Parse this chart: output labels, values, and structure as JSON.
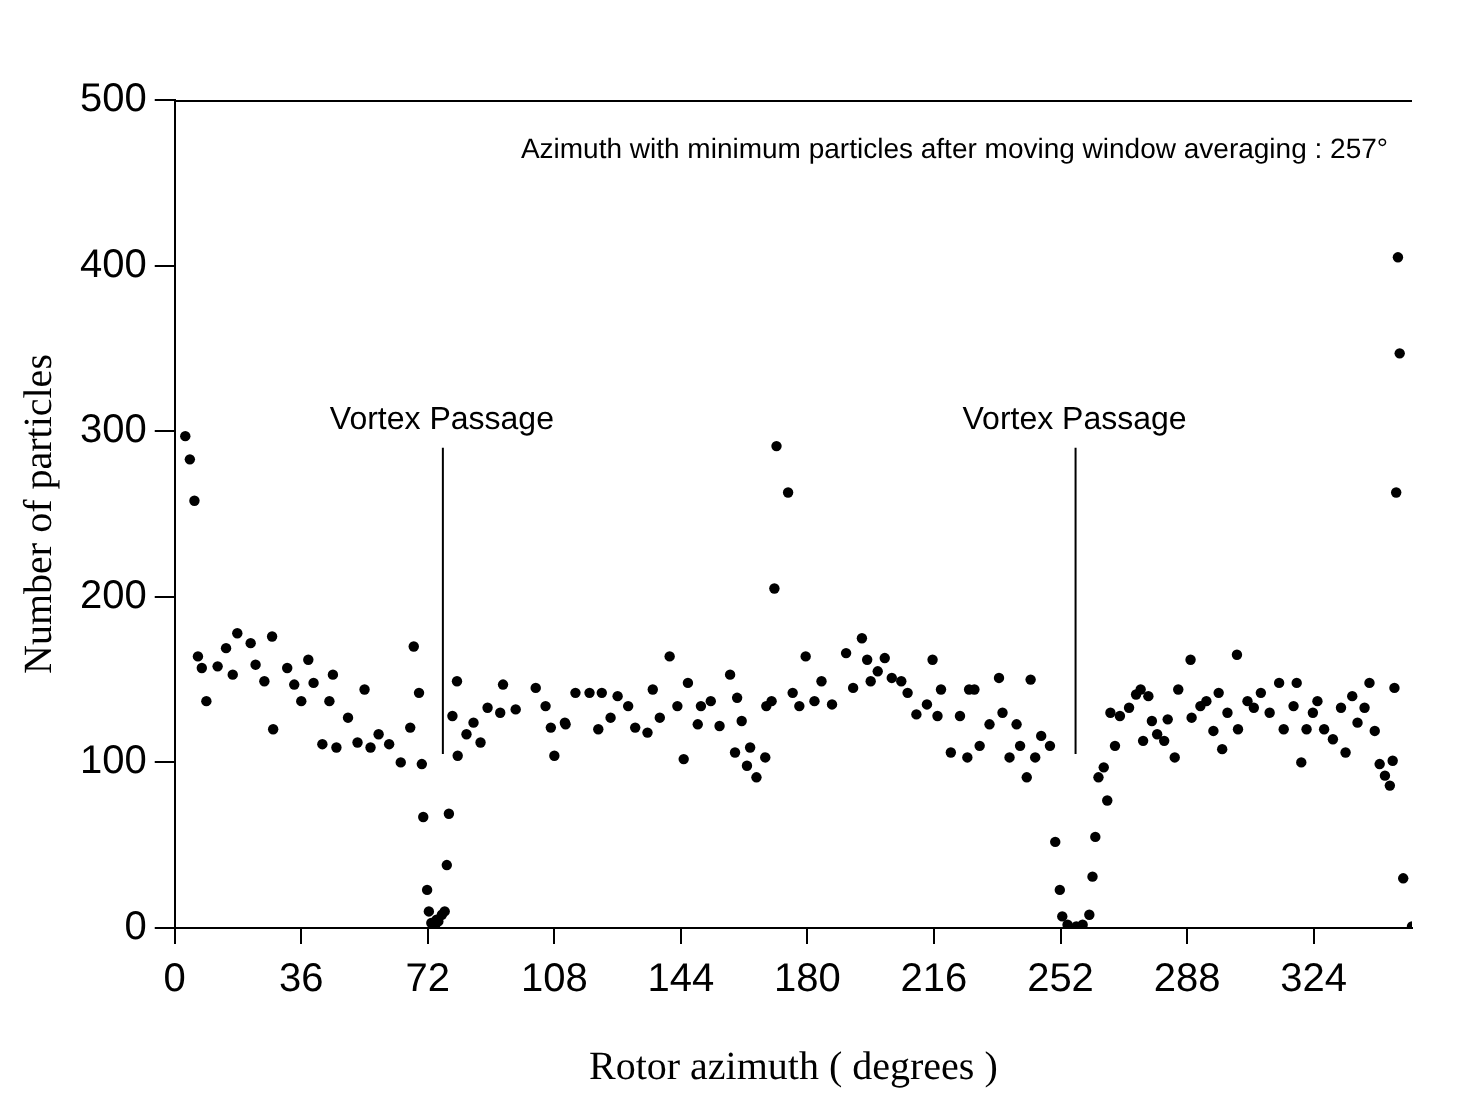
{
  "chart_data": {
    "type": "scatter",
    "xlabel": "Rotor azimuth ( degrees )",
    "ylabel": "Number of particles",
    "annotations": [
      "Azimuth with minimum particles after moving window averaging : 257°"
    ],
    "ref_lines": [
      {
        "axis": "x",
        "value": 76,
        "label": "Vortex Passage"
      },
      {
        "axis": "x",
        "value": 256,
        "label": "Vortex Passage"
      }
    ],
    "x": [
      3,
      4.3,
      5.6,
      6.6,
      7.7,
      9,
      12.2,
      14.6,
      16.5,
      17.8,
      21.6,
      23,
      25.5,
      27.7,
      28,
      32,
      34,
      36,
      38,
      39.5,
      42,
      44,
      45,
      46,
      49.3,
      52,
      54,
      55.7,
      58,
      61,
      64.3,
      67,
      68,
      69.5,
      70.3,
      70.7,
      71.8,
      72.3,
      73,
      74,
      74.5,
      75,
      76,
      76.8,
      77.4,
      78,
      79,
      80.3,
      80.5,
      83,
      85,
      87,
      89,
      92.6,
      93.4,
      97,
      102.7,
      105.5,
      107,
      108,
      111,
      111.2,
      114,
      118,
      120.5,
      121.5,
      124,
      126,
      129,
      131,
      134.5,
      136,
      138,
      140.8,
      143,
      144.8,
      146,
      148.8,
      149.7,
      152.5,
      155,
      158,
      159.4,
      160,
      161.3,
      162.8,
      163.7,
      165.5,
      168,
      168.3,
      169.8,
      170.6,
      171.2,
      174.5,
      175.8,
      177.7,
      179.5,
      182,
      184,
      187,
      191,
      193,
      195.5,
      197,
      198,
      200,
      202,
      204,
      206.7,
      208.5,
      211,
      214,
      215.6,
      217,
      218,
      220.8,
      223.4,
      225.5,
      226,
      227.5,
      229,
      231.8,
      234.5,
      235.5,
      237.5,
      239.5,
      240.5,
      242.4,
      243.5,
      244.8,
      246.5,
      249,
      250.5,
      251.8,
      252.5,
      254,
      256.5,
      258.3,
      260.2,
      261.1,
      261.9,
      262.8,
      264.3,
      265.3,
      266.2,
      267.5,
      268.9,
      271.5,
      273.5,
      274.8,
      275.5,
      277,
      278,
      279.5,
      281.5,
      282.5,
      284.5,
      285.5,
      289.3,
      289,
      291.8,
      293.5,
      295.5,
      297,
      298,
      299.5,
      302.2,
      302.5,
      305.2,
      307,
      309,
      311.5,
      314.2,
      315.5,
      318.3,
      319.2,
      320.5,
      322,
      323.8,
      325.1,
      327,
      329.5,
      331.8,
      333.1,
      335,
      336.5,
      338.5,
      339.9,
      341.4,
      342.8,
      344.3,
      345.7,
      346.5,
      347,
      347.5,
      348,
      348.5,
      349.5,
      352
    ],
    "values": [
      297,
      283,
      258,
      164,
      157,
      137,
      158,
      169,
      153,
      178,
      172,
      159,
      149,
      176,
      120,
      157,
      147,
      137,
      162,
      148,
      111,
      137,
      153,
      109,
      127,
      112,
      144,
      109,
      117,
      111,
      100,
      121,
      170,
      142,
      99,
      67,
      23,
      10,
      3,
      1,
      5,
      4,
      8,
      10,
      38,
      69,
      128,
      149,
      104,
      117,
      124,
      112,
      133,
      130,
      147,
      132,
      145,
      134,
      121,
      104,
      124,
      123,
      142,
      142,
      120,
      142,
      127,
      140,
      134,
      121,
      118,
      144,
      127,
      164,
      134,
      102,
      148,
      123,
      134,
      137,
      122,
      153,
      106,
      139,
      125,
      98,
      109,
      91,
      103,
      134,
      137,
      205,
      291,
      263,
      142,
      134,
      164,
      137,
      149,
      135,
      166,
      145,
      175,
      162,
      149,
      155,
      163,
      151,
      149,
      142,
      129,
      135,
      162,
      128,
      144,
      106,
      128,
      103,
      144,
      144,
      110,
      123,
      151,
      130,
      103,
      123,
      110,
      91,
      150,
      103,
      116,
      110,
      52,
      23,
      7,
      2,
      1,
      2,
      8,
      31,
      55,
      91,
      97,
      77,
      130,
      110,
      128,
      133,
      141,
      144,
      113,
      140,
      125,
      117,
      113,
      126,
      103,
      144,
      127,
      162,
      134,
      137,
      119,
      142,
      108,
      130,
      165,
      120,
      137,
      133,
      142,
      130,
      148,
      120,
      134,
      148,
      100,
      120,
      130,
      137,
      120,
      114,
      133,
      106,
      140,
      124,
      133,
      148,
      119,
      99,
      92,
      86,
      101,
      145,
      263,
      405,
      347,
      30,
      1
    ],
    "color": "#000000",
    "marker": "circle",
    "grid": false,
    "legend": false,
    "xlim": [
      0,
      352
    ],
    "xticks": [
      0,
      36,
      72,
      108,
      144,
      180,
      216,
      252,
      288,
      324
    ],
    "ylim": [
      0,
      500
    ],
    "yticks": [
      0,
      100,
      200,
      300,
      400,
      500
    ]
  }
}
